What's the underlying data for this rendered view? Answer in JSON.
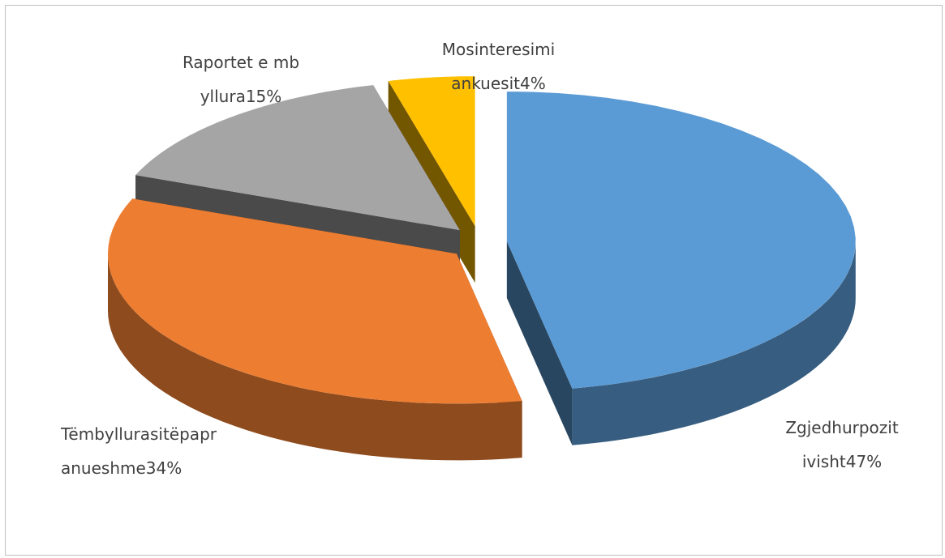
{
  "chart_data": {
    "type": "pie3d",
    "categories": [
      "Zgjedhurpozitivisht",
      "Tëmbyllurasitëpapranueshme",
      "Raportet e mbyllura",
      "Mosinteresimi ankuesit"
    ],
    "values": [
      47,
      34,
      15,
      4
    ],
    "value_labels": [
      "47%",
      "34%",
      "15%",
      "4%"
    ],
    "colors": [
      "#5b9bd5",
      "#ed7d31",
      "#a5a5a5",
      "#ffc000"
    ]
  }
}
